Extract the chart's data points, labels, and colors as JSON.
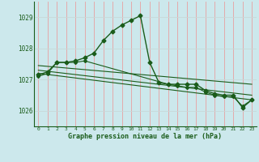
{
  "title": "Graphe pression niveau de la mer (hPa)",
  "background_color": "#cce8ec",
  "grid_color_v": "#e8a0a0",
  "grid_color_h": "#c8d8d8",
  "line_color": "#1a5c1a",
  "xlim": [
    -0.5,
    23.5
  ],
  "ylim": [
    1025.5,
    1029.5
  ],
  "yticks": [
    1026,
    1027,
    1028,
    1029
  ],
  "xticks": [
    0,
    1,
    2,
    3,
    4,
    5,
    6,
    7,
    8,
    9,
    10,
    11,
    12,
    13,
    14,
    15,
    16,
    17,
    18,
    19,
    20,
    21,
    22,
    23
  ],
  "series1_x": [
    0,
    1,
    2,
    3,
    4,
    5,
    6,
    7,
    8,
    9,
    10,
    11,
    12,
    13,
    14,
    15,
    16,
    17,
    18,
    19,
    20,
    21,
    22,
    23
  ],
  "series1_y": [
    1027.15,
    1027.25,
    1027.55,
    1027.55,
    1027.6,
    1027.7,
    1027.85,
    1028.25,
    1028.55,
    1028.75,
    1028.9,
    1029.05,
    1027.55,
    1026.9,
    1026.85,
    1026.85,
    1026.85,
    1026.85,
    1026.65,
    1026.55,
    1026.5,
    1026.5,
    1026.1,
    1026.35
  ],
  "series2_x": [
    0,
    1,
    2,
    3,
    4,
    5,
    14,
    15,
    16,
    17,
    18,
    19,
    20,
    21,
    22,
    23
  ],
  "series2_y": [
    1027.1,
    1027.2,
    1027.55,
    1027.55,
    1027.55,
    1027.6,
    1026.85,
    1026.8,
    1026.75,
    1026.75,
    1026.6,
    1026.5,
    1026.45,
    1026.45,
    1026.15,
    1026.35
  ],
  "line1_x": [
    0,
    23
  ],
  "line1_y": [
    1027.45,
    1026.85
  ],
  "line2_x": [
    0,
    23
  ],
  "line2_y": [
    1027.3,
    1026.5
  ],
  "line3_x": [
    0,
    23
  ],
  "line3_y": [
    1027.2,
    1026.35
  ]
}
